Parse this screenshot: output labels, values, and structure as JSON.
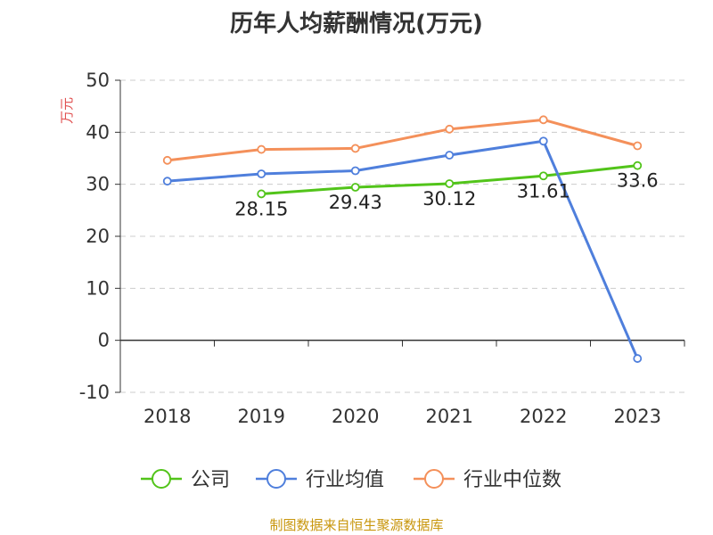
{
  "chart_data": {
    "type": "line",
    "title": "历年人均薪酬情况(万元)",
    "ylabel": "万元",
    "xlabel": "",
    "categories": [
      "2018",
      "2019",
      "2020",
      "2021",
      "2022",
      "2023"
    ],
    "ylim": [
      -10,
      50
    ],
    "yticks": [
      50,
      40,
      30,
      20,
      10,
      0,
      -10
    ],
    "grid": true,
    "legend_position": "bottom",
    "series": [
      {
        "name": "公司",
        "color": "#52c41a",
        "values": [
          null,
          28.15,
          29.43,
          30.12,
          31.61,
          33.6
        ],
        "labels": [
          "",
          "28.15",
          "29.43",
          "30.12",
          "31.61",
          "33.6"
        ]
      },
      {
        "name": "行业均值",
        "color": "#4f7fdc",
        "values": [
          30.6,
          32.0,
          32.6,
          35.6,
          38.3,
          -3.5
        ]
      },
      {
        "name": "行业中位数",
        "color": "#f4905a",
        "values": [
          34.6,
          36.7,
          36.9,
          40.6,
          42.4,
          37.4
        ]
      }
    ]
  },
  "source": "制图数据来自恒生聚源数据库"
}
